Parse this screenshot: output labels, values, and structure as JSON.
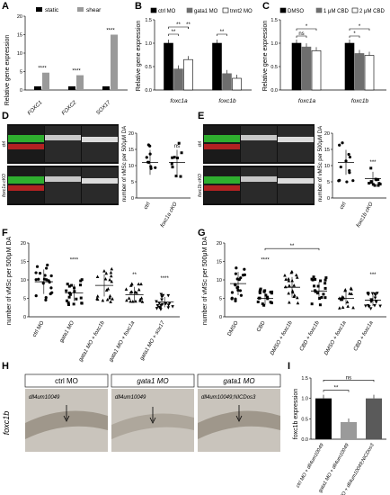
{
  "panels": {
    "A": "A",
    "B": "B",
    "C": "C",
    "D": "D",
    "E": "E",
    "F": "F",
    "G": "G",
    "H": "H",
    "I": "I"
  },
  "panel_a": {
    "ylabel": "Relative gene expression",
    "legend": [
      "static",
      "shear"
    ],
    "categories": [
      "FOXC1",
      "FOXC2",
      "SOX17"
    ],
    "sig": [
      "****",
      "****",
      "****"
    ]
  },
  "panel_b": {
    "ylabel": "Relative gene expression",
    "legend": [
      "ctrl MO",
      "gata1 MO",
      "tnnt2 MO"
    ],
    "categories": [
      "foxc1a",
      "foxc1b"
    ],
    "sig": [
      "**",
      "**",
      "**",
      "**"
    ]
  },
  "panel_c": {
    "ylabel": "Relative gene expression",
    "legend": [
      "DMSO",
      "1 μM CBD",
      "2 μM CBD"
    ],
    "categories": [
      "foxc1a",
      "foxc1b"
    ],
    "sig": [
      "ns",
      "*",
      "*",
      "*"
    ]
  },
  "panel_d": {
    "ylabel": "number of vMSc per 500μM DA",
    "categories": [
      "ctrl",
      "foxc1a cKO"
    ],
    "sig": "ns",
    "row_labels": [
      "ctrl",
      "foxc1a cKO"
    ]
  },
  "panel_e": {
    "ylabel": "number of vMSc per 500μM DA",
    "categories": [
      "ctrl",
      "foxc1b cKO"
    ],
    "sig": "***",
    "row_labels": [
      "ctrl",
      "foxc1b cKO"
    ]
  },
  "panel_f": {
    "ylabel": "number of vMSc per 500μM DA",
    "categories": [
      "ctrl MO",
      "gata1 MO",
      "gata1 MO + foxc1b",
      "gata1 MO + foxc1a",
      "gata1 MO + sox17"
    ],
    "sig": [
      "****",
      "**",
      "****"
    ]
  },
  "panel_g": {
    "ylabel": "number of vMSc per 500μM DA",
    "categories": [
      "DMSO",
      "CBD",
      "DMSO + foxc1b",
      "CBD + foxc1b",
      "DMSO + foxc1a",
      "CBD + foxc1a"
    ],
    "sig": [
      "****",
      "**",
      "***"
    ]
  },
  "panel_h": {
    "side_label": "foxc1b",
    "headers": [
      "ctrl MO",
      "gata1 MO",
      "gata1 MO"
    ],
    "inset_labels": [
      "dll4um10049",
      "dll4um10049",
      "dll4um10049;NICDos3"
    ]
  },
  "panel_i": {
    "ylabel": "foxc1b expression",
    "categories": [
      "ctrl MO + dll4um10049",
      "gata1 MO + dll4um10049",
      "gata1 MO + dll4um10049;NICDos3"
    ],
    "sig": [
      "**",
      "ns"
    ]
  },
  "chart_data": [
    {
      "type": "bar",
      "categories": [
        "FOXC1",
        "FOXC2",
        "SOX17"
      ],
      "series": [
        {
          "name": "static",
          "values": [
            1,
            1,
            1
          ]
        },
        {
          "name": "shear",
          "values": [
            4.7,
            4.0,
            15.0
          ]
        }
      ],
      "ylabel": "Relative gene expression",
      "ylim": [
        0,
        20
      ],
      "yticks": [
        0,
        5,
        10,
        15,
        20
      ]
    },
    {
      "type": "bar",
      "categories": [
        "foxc1a",
        "foxc1b"
      ],
      "series": [
        {
          "name": "ctrl MO",
          "values": [
            1.0,
            1.0
          ]
        },
        {
          "name": "gata1 MO",
          "values": [
            0.45,
            0.35
          ]
        },
        {
          "name": "tnnt2 MO",
          "values": [
            0.65,
            0.25
          ]
        }
      ],
      "ylabel": "Relative gene expression",
      "ylim": [
        0,
        1.5
      ],
      "yticks": [
        0.0,
        0.5,
        1.0,
        1.5
      ]
    },
    {
      "type": "bar",
      "categories": [
        "foxc1a",
        "foxc1b"
      ],
      "series": [
        {
          "name": "DMSO",
          "values": [
            1.0,
            1.0
          ]
        },
        {
          "name": "1 μM CBD",
          "values": [
            0.92,
            0.78
          ]
        },
        {
          "name": "2 μM CBD",
          "values": [
            0.84,
            0.74
          ]
        }
      ],
      "ylabel": "Relative gene expression",
      "ylim": [
        0,
        1.5
      ],
      "yticks": [
        0.0,
        0.5,
        1.0,
        1.5
      ]
    },
    {
      "type": "scatter",
      "categories": [
        "ctrl",
        "foxc1a cKO"
      ],
      "means": [
        11,
        11
      ],
      "ylabel": "number of vMSc per 500μM DA",
      "ylim": [
        0,
        20
      ],
      "yticks": [
        0,
        5,
        10,
        15,
        20
      ]
    },
    {
      "type": "scatter",
      "categories": [
        "ctrl",
        "foxc1b cKO"
      ],
      "means": [
        11,
        6
      ],
      "ylabel": "number of vMSc per 500μM DA",
      "ylim": [
        0,
        20
      ],
      "yticks": [
        0,
        5,
        10,
        15,
        20
      ]
    },
    {
      "type": "scatter",
      "categories": [
        "ctrl MO",
        "gata1 MO",
        "gata1 MO + foxc1b",
        "gata1 MO + foxc1a",
        "gata1 MO + sox17"
      ],
      "means": [
        9.5,
        6.5,
        8.5,
        6,
        4
      ],
      "ylabel": "number of vMSc per 500μM DA",
      "ylim": [
        0,
        20
      ],
      "yticks": [
        0,
        5,
        10,
        15,
        20
      ]
    },
    {
      "type": "scatter",
      "categories": [
        "DMSO",
        "CBD",
        "DMSO + foxc1b",
        "CBD + foxc1b",
        "DMSO + foxc1a",
        "CBD + foxc1a"
      ],
      "means": [
        9,
        5,
        8,
        7,
        5,
        4.5
      ],
      "ylabel": "number of vMSc per 500μM DA",
      "ylim": [
        0,
        20
      ],
      "yticks": [
        0,
        5,
        10,
        15,
        20
      ]
    },
    {
      "type": "bar",
      "categories": [
        "ctrl MO + dll4um10049",
        "gata1 MO + dll4um10049",
        "gata1 MO + dll4um10049;NICDos3"
      ],
      "values": [
        1.0,
        0.42,
        1.0
      ],
      "ylabel": "foxc1b expression",
      "ylim": [
        0,
        1.5
      ],
      "yticks": [
        0.0,
        0.5,
        1.0,
        1.5
      ]
    }
  ]
}
